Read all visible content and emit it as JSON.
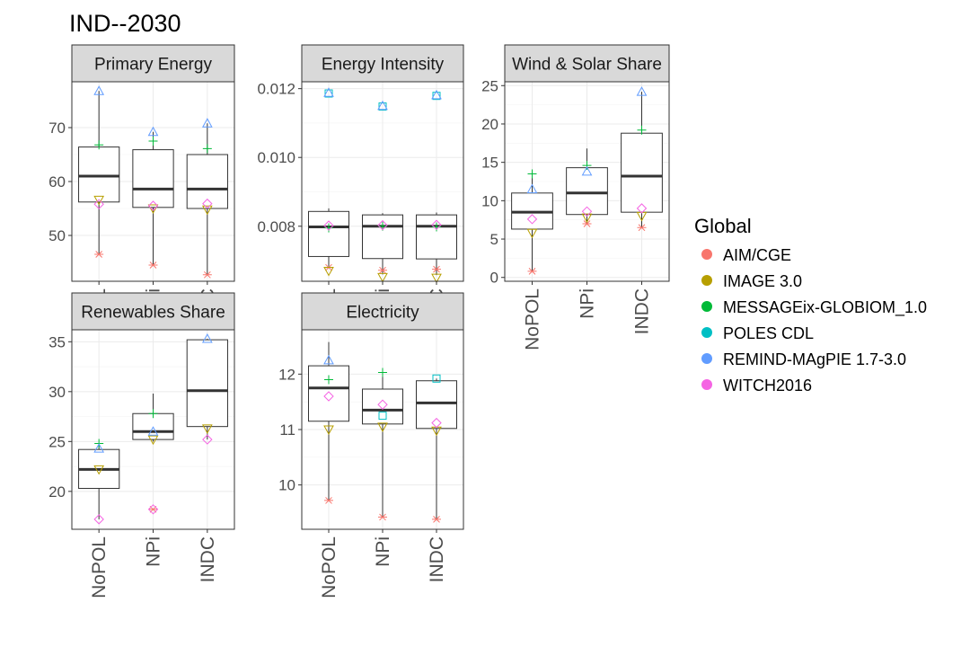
{
  "title": "IND--2030",
  "legend": {
    "title": "Global",
    "placement": "right",
    "items": [
      {
        "name": "AIM/CGE",
        "color": "#F8766D",
        "marker": "asterisk"
      },
      {
        "name": "IMAGE 3.0",
        "color": "#B79F00",
        "marker": "triangle-down"
      },
      {
        "name": "MESSAGEix-GLOBIOM_1.0",
        "color": "#00BA38",
        "marker": "plus"
      },
      {
        "name": "POLES CDL",
        "color": "#00BFC4",
        "marker": "square"
      },
      {
        "name": "REMIND-MAgPIE 1.7-3.0",
        "color": "#619CFF",
        "marker": "triangle-up"
      },
      {
        "name": "WITCH2016",
        "color": "#F564E3",
        "marker": "diamond"
      }
    ]
  },
  "chart_data": {
    "type": "box",
    "categories": [
      "NoPOL",
      "NPi",
      "INDC"
    ],
    "grid": true,
    "panels": [
      {
        "title": "Primary Energy",
        "ylim": [
          41.5,
          78.5
        ],
        "yticks": [
          50,
          60,
          70
        ],
        "show_x_labels": true,
        "boxes": [
          {
            "q1": 56.2,
            "median": 61,
            "q3": 66.4,
            "min": 46.5,
            "max": 76.8
          },
          {
            "q1": 55.2,
            "median": 58.6,
            "q3": 65.9,
            "min": 44.5,
            "max": 69.2
          },
          {
            "q1": 55.0,
            "median": 58.6,
            "q3": 65.0,
            "min": 42.7,
            "max": 70.8
          }
        ],
        "points": {
          "AIM/CGE": [
            46.5,
            44.5,
            42.7
          ],
          "IMAGE 3.0": [
            56.6,
            55.0,
            54.8
          ],
          "MESSAGEix-GLOBIOM_1.0": [
            66.8,
            67.5,
            66.1
          ],
          "REMIND-MAgPIE 1.7-3.0": [
            76.8,
            69.2,
            70.8
          ],
          "WITCH2016": [
            55.8,
            55.5,
            55.9
          ]
        }
      },
      {
        "title": "Energy Intensity",
        "ylim": [
          0.0064,
          0.0122
        ],
        "yticks": [
          0.008,
          0.01,
          0.012
        ],
        "tick_format": 3,
        "show_x_labels": true,
        "boxes": [
          {
            "q1": 0.00712,
            "median": 0.00798,
            "q3": 0.00843,
            "min": 0.00683,
            "max": 0.00852
          },
          {
            "q1": 0.00706,
            "median": 0.008,
            "q3": 0.00833,
            "min": 0.0066,
            "max": 0.00838
          },
          {
            "q1": 0.00705,
            "median": 0.008,
            "q3": 0.00833,
            "min": 0.00658,
            "max": 0.0084
          }
        ],
        "points": {
          "AIM/CGE": [
            0.0068,
            0.00672,
            0.00675
          ],
          "IMAGE 3.0": [
            0.0067,
            0.00652,
            0.0065
          ],
          "MESSAGEix-GLOBIOM_1.0": [
            0.00795,
            0.008,
            0.00798
          ],
          "POLES CDL": [
            0.01186,
            0.01148,
            0.01179
          ],
          "REMIND-MAgPIE 1.7-3.0": [
            0.01188,
            0.0115,
            0.01181
          ],
          "WITCH2016": [
            0.00802,
            0.00803,
            0.00804
          ]
        }
      },
      {
        "title": "Wind & Solar Share",
        "ylim": [
          -0.5,
          25.5
        ],
        "yticks": [
          0,
          5,
          10,
          15,
          20,
          25
        ],
        "show_x_labels": true,
        "boxes": [
          {
            "q1": 6.3,
            "median": 8.5,
            "q3": 11.0,
            "min": 0.8,
            "max": 13.5
          },
          {
            "q1": 8.2,
            "median": 11.0,
            "q3": 14.3,
            "min": 7.0,
            "max": 16.8
          },
          {
            "q1": 8.5,
            "median": 13.2,
            "q3": 18.8,
            "min": 6.5,
            "max": 24.2
          }
        ],
        "points": {
          "AIM/CGE": [
            0.8,
            7.0,
            6.5
          ],
          "IMAGE 3.0": [
            5.8,
            7.8,
            8.0
          ],
          "MESSAGEix-GLOBIOM_1.0": [
            13.5,
            14.6,
            19.2
          ],
          "REMIND-MAgPIE 1.7-3.0": [
            11.5,
            13.8,
            24.2
          ],
          "WITCH2016": [
            7.6,
            8.6,
            9.0
          ]
        }
      },
      {
        "title": "Renewables Share",
        "ylim": [
          16.2,
          36.2
        ],
        "yticks": [
          20,
          25,
          30,
          35
        ],
        "show_x_labels": true,
        "boxes": [
          {
            "q1": 20.3,
            "median": 22.2,
            "q3": 24.2,
            "min": 17.2,
            "max": 24.8
          },
          {
            "q1": 25.2,
            "median": 26.0,
            "q3": 27.8,
            "min": 25.0,
            "max": 29.8
          },
          {
            "q1": 26.5,
            "median": 30.1,
            "q3": 35.2,
            "min": 25.2,
            "max": 35.3
          }
        ],
        "points": {
          "AIM/CGE": [
            null,
            18.2,
            null
          ],
          "IMAGE 3.0": [
            22.2,
            25.2,
            26.3
          ],
          "MESSAGEix-GLOBIOM_1.0": [
            24.8,
            27.8,
            null
          ],
          "REMIND-MAgPIE 1.7-3.0": [
            24.3,
            26.0,
            35.3
          ],
          "WITCH2016": [
            17.2,
            18.2,
            25.2
          ]
        }
      },
      {
        "title": "Electricity",
        "ylim": [
          9.2,
          12.8
        ],
        "yticks": [
          10,
          11,
          12
        ],
        "show_x_labels": true,
        "boxes": [
          {
            "q1": 11.15,
            "median": 11.75,
            "q3": 12.15,
            "min": 9.72,
            "max": 12.58
          },
          {
            "q1": 11.1,
            "median": 11.35,
            "q3": 11.73,
            "min": 9.42,
            "max": 12.05
          },
          {
            "q1": 11.02,
            "median": 11.48,
            "q3": 11.88,
            "min": 9.38,
            "max": 11.92
          }
        ],
        "points": {
          "AIM/CGE": [
            9.72,
            9.42,
            9.38
          ],
          "IMAGE 3.0": [
            11.0,
            11.05,
            10.98
          ],
          "MESSAGEix-GLOBIOM_1.0": [
            11.9,
            12.03,
            null
          ],
          "POLES CDL": [
            null,
            11.25,
            11.92
          ],
          "REMIND-MAgPIE 1.7-3.0": [
            12.25,
            null,
            null
          ],
          "WITCH2016": [
            11.6,
            11.45,
            11.12
          ]
        }
      }
    ]
  }
}
